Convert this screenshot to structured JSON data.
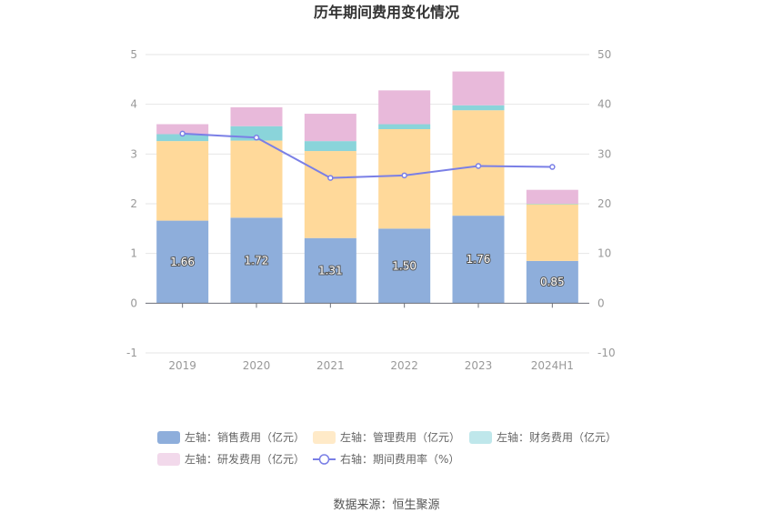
{
  "chart_data": {
    "type": "bar",
    "title": "历年期间费用变化情况",
    "categories": [
      "2019",
      "2020",
      "2021",
      "2022",
      "2023",
      "2024H1"
    ],
    "y_left": {
      "ylim": [
        -1,
        5
      ],
      "ticks": [
        "-1",
        "0",
        "1",
        "2",
        "3",
        "4",
        "5"
      ]
    },
    "y_right": {
      "ylim": [
        -10,
        50
      ],
      "ticks": [
        "-10",
        "0",
        "10",
        "20",
        "30",
        "40",
        "50"
      ]
    },
    "series": [
      {
        "name": "左轴：销售费用（亿元）",
        "type": "bar",
        "axis": "left",
        "color": "#8eaedb",
        "values": [
          1.66,
          1.72,
          1.31,
          1.5,
          1.76,
          0.85
        ],
        "labels": [
          "1.66",
          "1.72",
          "1.31",
          "1.50",
          "1.76",
          "0.85"
        ]
      },
      {
        "name": "左轴：管理费用（亿元）",
        "type": "bar",
        "axis": "left",
        "color": "#ffd99a",
        "values": [
          1.6,
          1.55,
          1.75,
          2.0,
          2.12,
          1.14
        ]
      },
      {
        "name": "左轴：财务费用（亿元）",
        "type": "bar",
        "axis": "left",
        "color": "#8ad4da",
        "values": [
          0.14,
          0.29,
          0.2,
          0.1,
          0.1,
          0.01
        ]
      },
      {
        "name": "左轴：研发费用（亿元）",
        "type": "bar",
        "axis": "left",
        "color": "#e8b9da",
        "values": [
          0.2,
          0.38,
          0.55,
          0.68,
          0.68,
          0.28
        ]
      },
      {
        "name": "右轴：期间费用率（%）",
        "type": "line",
        "axis": "right",
        "color": "#7a7fe6",
        "values": [
          34.1,
          33.3,
          25.2,
          25.7,
          27.6,
          27.4
        ]
      }
    ],
    "legend": {
      "position": "bottom"
    },
    "grid": true
  },
  "source": "数据来源：恒生聚源"
}
